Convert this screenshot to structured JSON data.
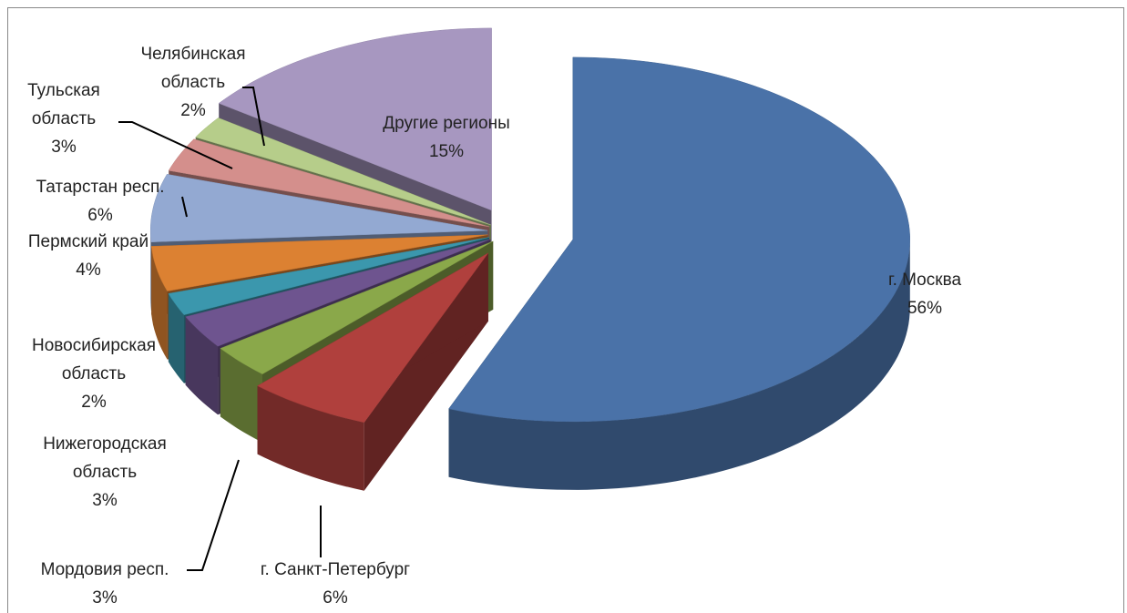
{
  "chart_data": {
    "type": "pie",
    "categories": [
      "г. Москва",
      "г. Санкт-Петербург",
      "Мордовия респ.",
      "Нижегородская область",
      "Новосибирская область",
      "Пермский край",
      "Татарстан респ.",
      "Тульская область",
      "Челябинская область",
      "Другие регионы"
    ],
    "values": [
      56,
      6,
      3,
      3,
      2,
      4,
      6,
      3,
      2,
      15
    ],
    "value_labels": [
      "56%",
      "6%",
      "3%",
      "3%",
      "2%",
      "4%",
      "6%",
      "3%",
      "2%",
      "15%"
    ],
    "colors": [
      "#4a72a8",
      "#b0403d",
      "#8aa84a",
      "#6e548f",
      "#3b97ad",
      "#dc8132",
      "#93a9d2",
      "#d48f8c",
      "#b6cd8a",
      "#a797c0"
    ]
  }
}
